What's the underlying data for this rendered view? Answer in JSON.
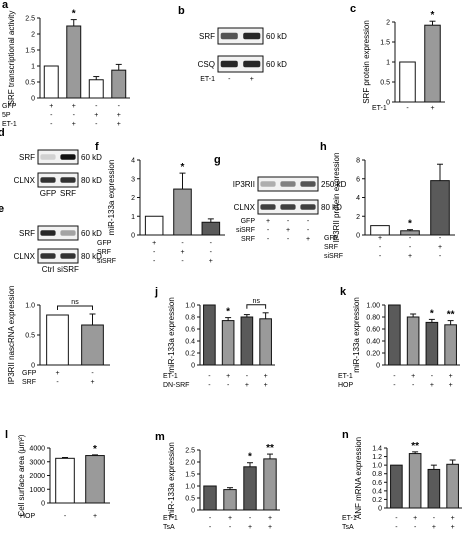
{
  "colors": {
    "white": "#ffffff",
    "gray": "#9a9a9a",
    "dark": "#5a5a5a",
    "black": "#111111"
  },
  "blots": {
    "b": {
      "letter": "b",
      "rows": [
        "SRF",
        "CSQ"
      ],
      "kd": [
        "60 kD",
        "60 kD"
      ],
      "axis": [
        {
          "label": "ET-1",
          "values": [
            "-",
            "+"
          ]
        }
      ]
    },
    "d": {
      "letter": "d",
      "rows": [
        "SRF",
        "CLNX"
      ],
      "kd": [
        "60 kD",
        "80 kD"
      ],
      "lanes": [
        "GFP",
        "SRF"
      ]
    },
    "e": {
      "letter": "e",
      "rows": [
        "SRF",
        "CLNX"
      ],
      "kd": [
        "60 kD",
        "80 kD"
      ],
      "lanes": [
        "Ctrl",
        "siSRF"
      ]
    },
    "g": {
      "letter": "g",
      "rows": [
        "IP3RII",
        "CLNX"
      ],
      "kd": [
        "250 kD",
        "80 kD"
      ],
      "axis": [
        {
          "label": "GFP",
          "values": [
            "+",
            "-",
            "-"
          ]
        },
        {
          "label": "siSRF",
          "values": [
            "-",
            "+",
            "-"
          ]
        },
        {
          "label": "SRF",
          "values": [
            "-",
            "-",
            "+"
          ]
        }
      ]
    }
  },
  "chart_data": [
    {
      "letter": "a",
      "type": "bar",
      "ylabel": "SRF transcriptional activity",
      "ylim": [
        0,
        2.5
      ],
      "yticks": [
        "0",
        "0.5",
        "1",
        "1.5",
        "2",
        "2.5"
      ],
      "categories": [
        "1",
        "2",
        "3",
        "4"
      ],
      "values": [
        1.0,
        2.25,
        0.57,
        0.87
      ],
      "errors": [
        0,
        0.2,
        0.1,
        0.18
      ],
      "colors": [
        "white",
        "gray",
        "white",
        "gray"
      ],
      "sig": [
        "",
        "*",
        "",
        ""
      ],
      "rows": [
        {
          "label": "GFP",
          "values": [
            "+",
            "+",
            "-",
            "-"
          ]
        },
        {
          "label": "5P",
          "values": [
            "-",
            "-",
            "+",
            "+"
          ]
        },
        {
          "label": "ET-1",
          "values": [
            "-",
            "+",
            "-",
            "+"
          ]
        }
      ]
    },
    {
      "letter": "c",
      "type": "bar",
      "ylabel": "SRF protein expression",
      "ylim": [
        0,
        2
      ],
      "yticks": [
        "0",
        "0.5",
        "1",
        "1.5",
        "2"
      ],
      "categories": [
        "1",
        "2"
      ],
      "values": [
        1.0,
        1.92
      ],
      "errors": [
        0,
        0.1
      ],
      "colors": [
        "white",
        "gray"
      ],
      "sig": [
        "",
        "*"
      ],
      "rows": [
        {
          "label": "ET-1",
          "values": [
            "-",
            "+"
          ]
        }
      ]
    },
    {
      "letter": "f",
      "type": "bar",
      "ylabel": "miR-133a expression",
      "ylim": [
        0,
        4
      ],
      "yticks": [
        "0",
        "1",
        "2",
        "3",
        "4"
      ],
      "categories": [
        "1",
        "2",
        "3"
      ],
      "values": [
        1.0,
        2.45,
        0.68
      ],
      "errors": [
        0,
        0.85,
        0.18
      ],
      "colors": [
        "white",
        "gray",
        "dark"
      ],
      "sig": [
        "",
        "*",
        ""
      ],
      "rows": [
        {
          "label": "GFP",
          "values": [
            "+",
            "-",
            "-"
          ]
        },
        {
          "label": "SRF",
          "values": [
            "-",
            "+",
            "-"
          ]
        },
        {
          "label": "siSRF",
          "values": [
            "-",
            "-",
            "+"
          ]
        }
      ]
    },
    {
      "letter": "h",
      "type": "bar",
      "ylabel": "IP3RII protein expression",
      "ylim": [
        0,
        8
      ],
      "yticks": [
        "0",
        "2",
        "4",
        "6",
        "8"
      ],
      "categories": [
        "1",
        "2",
        "3"
      ],
      "values": [
        1.0,
        0.45,
        5.8
      ],
      "errors": [
        0,
        0.12,
        1.75
      ],
      "colors": [
        "white",
        "gray",
        "dark"
      ],
      "sig": [
        "",
        "*",
        ""
      ],
      "rows": [
        {
          "label": "GFP",
          "values": [
            "+",
            "-",
            "-"
          ]
        },
        {
          "label": "SRF",
          "values": [
            "-",
            "-",
            "+"
          ]
        },
        {
          "label": "siSRF",
          "values": [
            "-",
            "+",
            "-"
          ]
        }
      ]
    },
    {
      "letter": "i",
      "type": "bar",
      "ylabel": "IP3RII nascRNA expression",
      "ylim": [
        0,
        1.2
      ],
      "yticks": [
        "0",
        "0.5",
        "1.0"
      ],
      "categories": [
        "1",
        "2"
      ],
      "values": [
        1.0,
        0.8
      ],
      "errors": [
        0,
        0.22
      ],
      "colors": [
        "white",
        "gray"
      ],
      "sig": [
        "",
        ""
      ],
      "brackets": [
        {
          "from": 0,
          "to": 1,
          "label": "ns"
        }
      ],
      "rows": [
        {
          "label": "GFP",
          "values": [
            "+",
            "-"
          ]
        },
        {
          "label": "SRF",
          "values": [
            "-",
            "+"
          ]
        }
      ]
    },
    {
      "letter": "j",
      "type": "bar",
      "ylabel": "miR-133a expression",
      "ylim": [
        0,
        1.0
      ],
      "yticks": [
        "0",
        "0.2",
        "0.4",
        "0.6",
        "0.8",
        "1.0"
      ],
      "categories": [
        "1",
        "2",
        "3",
        "4"
      ],
      "values": [
        1.0,
        0.74,
        0.8,
        0.77
      ],
      "errors": [
        0,
        0.05,
        0.04,
        0.1
      ],
      "colors": [
        "dark",
        "gray",
        "dark",
        "gray"
      ],
      "sig": [
        "",
        "*",
        "",
        ""
      ],
      "brackets": [
        {
          "from": 2,
          "to": 3,
          "label": "ns"
        }
      ],
      "rows": [
        {
          "label": "ET-1",
          "values": [
            "-",
            "+",
            "-",
            "+"
          ]
        },
        {
          "label": "DN-SRF",
          "values": [
            "-",
            "-",
            "+",
            "+"
          ]
        }
      ]
    },
    {
      "letter": "k",
      "type": "bar",
      "ylabel": "miR-133a expression",
      "ylim": [
        0,
        1.0
      ],
      "yticks": [
        "0",
        "0.20",
        "0.40",
        "0.60",
        "0.80",
        "1.00"
      ],
      "categories": [
        "1",
        "2",
        "3",
        "4"
      ],
      "values": [
        1.0,
        0.8,
        0.71,
        0.67
      ],
      "errors": [
        0,
        0.05,
        0.05,
        0.07
      ],
      "colors": [
        "dark",
        "gray",
        "dark",
        "gray"
      ],
      "sig": [
        "",
        "",
        "*",
        "**"
      ],
      "rows": [
        {
          "label": "ET-1",
          "values": [
            "-",
            "+",
            "-",
            "+"
          ]
        },
        {
          "label": "HOP",
          "values": [
            "-",
            "-",
            "+",
            "+"
          ]
        }
      ]
    },
    {
      "letter": "l",
      "type": "bar",
      "ylabel": "Cell surface area (μm²)",
      "ylim": [
        0,
        4000
      ],
      "yticks": [
        "0",
        "1000",
        "2000",
        "3000",
        "4000"
      ],
      "categories": [
        "1",
        "2"
      ],
      "values": [
        3250,
        3450
      ],
      "errors": [
        60,
        50
      ],
      "colors": [
        "white",
        "gray"
      ],
      "sig": [
        "",
        "*"
      ],
      "rows": [
        {
          "label": "HOP",
          "values": [
            "-",
            "+"
          ]
        }
      ]
    },
    {
      "letter": "m",
      "type": "bar",
      "ylabel": "miR-133a expression",
      "ylim": [
        0,
        2.5
      ],
      "yticks": [
        "0",
        "0.5",
        "1.0",
        "1.5",
        "2.0",
        "2.5"
      ],
      "categories": [
        "1",
        "2",
        "3",
        "4"
      ],
      "values": [
        1.0,
        0.85,
        1.8,
        2.13
      ],
      "errors": [
        0,
        0.08,
        0.17,
        0.2
      ],
      "colors": [
        "dark",
        "gray",
        "dark",
        "gray"
      ],
      "sig": [
        "",
        "",
        "*",
        "**"
      ],
      "rows": [
        {
          "label": "ET-1",
          "values": [
            "-",
            "+",
            "-",
            "+"
          ]
        },
        {
          "label": "TsA",
          "values": [
            "-",
            "-",
            "+",
            "+"
          ]
        }
      ]
    },
    {
      "letter": "n",
      "type": "bar",
      "ylabel": "ANF mRNA expression",
      "ylim": [
        0,
        1.4
      ],
      "yticks": [
        "0",
        "0.2",
        "0.4",
        "0.6",
        "0.8",
        "1.0",
        "1.2",
        "1.4"
      ],
      "categories": [
        "1",
        "2",
        "3",
        "4"
      ],
      "values": [
        1.0,
        1.27,
        0.9,
        1.02
      ],
      "errors": [
        0,
        0.04,
        0.1,
        0.1
      ],
      "colors": [
        "dark",
        "gray",
        "dark",
        "gray"
      ],
      "sig": [
        "",
        "**",
        "",
        ""
      ],
      "rows": [
        {
          "label": "ET-1",
          "values": [
            "-",
            "+",
            "-",
            "+"
          ]
        },
        {
          "label": "TsA",
          "values": [
            "-",
            "-",
            "+",
            "+"
          ]
        }
      ]
    }
  ]
}
